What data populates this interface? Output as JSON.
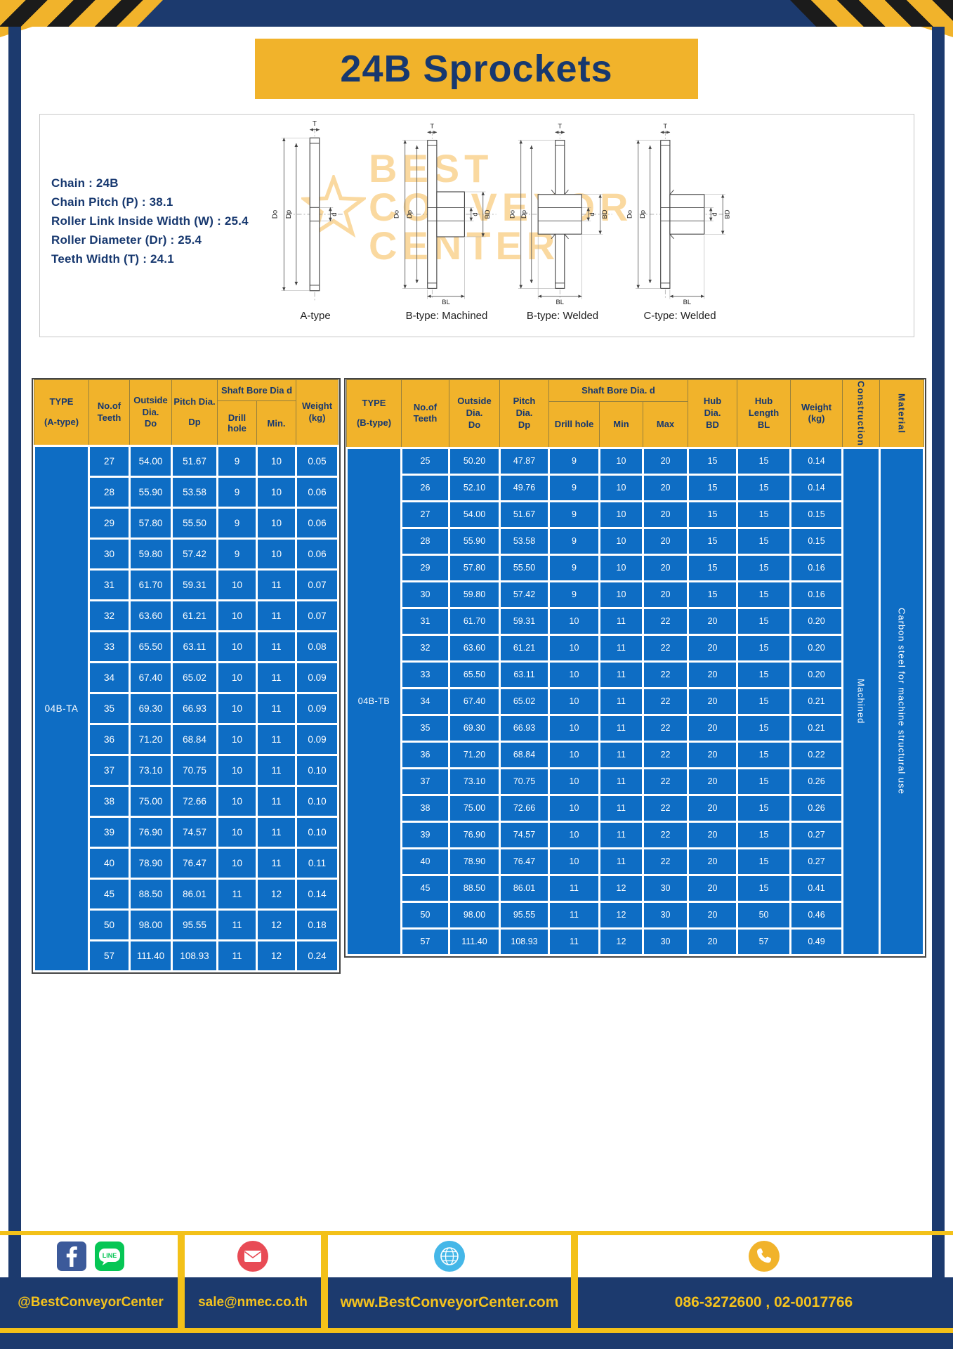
{
  "page": {
    "title": "24B Sprockets"
  },
  "specs": {
    "lines": [
      "Chain : 24B",
      "Chain Pitch (P) : 38.1",
      "Roller Link Inside Width (W) : 25.4",
      "Roller Diameter (Dr) : 25.4",
      "Teeth Width (T) : 24.1"
    ]
  },
  "diagram": {
    "types": [
      "A-type",
      "B-type: Machined",
      "B-type: Welded",
      "C-type: Welded"
    ],
    "dims": {
      "T": "T",
      "Do": "Do",
      "Dp": "Dp",
      "d": "d",
      "BD": "BD",
      "BL": "BL"
    },
    "watermark": [
      "BEST",
      "CONVEYOR",
      "CENTER"
    ]
  },
  "table_a": {
    "type_label": "04B-TA",
    "h": {
      "type": [
        "TYPE",
        "(A-type)"
      ],
      "teeth": [
        "No.of",
        "Teeth"
      ],
      "outside": [
        "Outside",
        "Dia.",
        "Do"
      ],
      "pitch": [
        "Pitch Dia.",
        "Dp"
      ],
      "bore_group": "Shaft Bore Dia d",
      "drill": "Drill hole",
      "min": "Min.",
      "weight": [
        "Weight",
        "(kg)"
      ]
    },
    "rows": [
      [
        "27",
        "54.00",
        "51.67",
        "9",
        "10",
        "0.05"
      ],
      [
        "28",
        "55.90",
        "53.58",
        "9",
        "10",
        "0.06"
      ],
      [
        "29",
        "57.80",
        "55.50",
        "9",
        "10",
        "0.06"
      ],
      [
        "30",
        "59.80",
        "57.42",
        "9",
        "10",
        "0.06"
      ],
      [
        "31",
        "61.70",
        "59.31",
        "10",
        "11",
        "0.07"
      ],
      [
        "32",
        "63.60",
        "61.21",
        "10",
        "11",
        "0.07"
      ],
      [
        "33",
        "65.50",
        "63.11",
        "10",
        "11",
        "0.08"
      ],
      [
        "34",
        "67.40",
        "65.02",
        "10",
        "11",
        "0.09"
      ],
      [
        "35",
        "69.30",
        "66.93",
        "10",
        "11",
        "0.09"
      ],
      [
        "36",
        "71.20",
        "68.84",
        "10",
        "11",
        "0.09"
      ],
      [
        "37",
        "73.10",
        "70.75",
        "10",
        "11",
        "0.10"
      ],
      [
        "38",
        "75.00",
        "72.66",
        "10",
        "11",
        "0.10"
      ],
      [
        "39",
        "76.90",
        "74.57",
        "10",
        "11",
        "0.10"
      ],
      [
        "40",
        "78.90",
        "76.47",
        "10",
        "11",
        "0.11"
      ],
      [
        "45",
        "88.50",
        "86.01",
        "11",
        "12",
        "0.14"
      ],
      [
        "50",
        "98.00",
        "95.55",
        "11",
        "12",
        "0.18"
      ],
      [
        "57",
        "111.40",
        "108.93",
        "11",
        "12",
        "0.24"
      ]
    ]
  },
  "table_b": {
    "type_label": "04B-TB",
    "construction_value": "Machined",
    "material_value": "Carbon steel for machine structural use",
    "h": {
      "type": [
        "TYPE",
        "(B-type)"
      ],
      "teeth": [
        "No.of",
        "Teeth"
      ],
      "outside": [
        "Outside",
        "Dia.",
        "Do"
      ],
      "pitch": [
        "Pitch",
        "Dia.",
        "Dp"
      ],
      "bore_group": "Shaft Bore Dia. d",
      "drill": "Drill hole",
      "min": "Min",
      "max": "Max",
      "hub_dia": [
        "Hub",
        "Dia.",
        "BD"
      ],
      "hub_len": [
        "Hub",
        "Length",
        "BL"
      ],
      "weight": [
        "Weight",
        "(kg)"
      ],
      "construction": "Construction",
      "material": "Material"
    },
    "rows": [
      [
        "25",
        "50.20",
        "47.87",
        "9",
        "10",
        "20",
        "15",
        "15",
        "0.14"
      ],
      [
        "26",
        "52.10",
        "49.76",
        "9",
        "10",
        "20",
        "15",
        "15",
        "0.14"
      ],
      [
        "27",
        "54.00",
        "51.67",
        "9",
        "10",
        "20",
        "15",
        "15",
        "0.15"
      ],
      [
        "28",
        "55.90",
        "53.58",
        "9",
        "10",
        "20",
        "15",
        "15",
        "0.15"
      ],
      [
        "29",
        "57.80",
        "55.50",
        "9",
        "10",
        "20",
        "15",
        "15",
        "0.16"
      ],
      [
        "30",
        "59.80",
        "57.42",
        "9",
        "10",
        "20",
        "15",
        "15",
        "0.16"
      ],
      [
        "31",
        "61.70",
        "59.31",
        "10",
        "11",
        "22",
        "20",
        "15",
        "0.20"
      ],
      [
        "32",
        "63.60",
        "61.21",
        "10",
        "11",
        "22",
        "20",
        "15",
        "0.20"
      ],
      [
        "33",
        "65.50",
        "63.11",
        "10",
        "11",
        "22",
        "20",
        "15",
        "0.20"
      ],
      [
        "34",
        "67.40",
        "65.02",
        "10",
        "11",
        "22",
        "20",
        "15",
        "0.21"
      ],
      [
        "35",
        "69.30",
        "66.93",
        "10",
        "11",
        "22",
        "20",
        "15",
        "0.21"
      ],
      [
        "36",
        "71.20",
        "68.84",
        "10",
        "11",
        "22",
        "20",
        "15",
        "0.22"
      ],
      [
        "37",
        "73.10",
        "70.75",
        "10",
        "11",
        "22",
        "20",
        "15",
        "0.26"
      ],
      [
        "38",
        "75.00",
        "72.66",
        "10",
        "11",
        "22",
        "20",
        "15",
        "0.26"
      ],
      [
        "39",
        "76.90",
        "74.57",
        "10",
        "11",
        "22",
        "20",
        "15",
        "0.27"
      ],
      [
        "40",
        "78.90",
        "76.47",
        "10",
        "11",
        "22",
        "20",
        "15",
        "0.27"
      ],
      [
        "45",
        "88.50",
        "86.01",
        "11",
        "12",
        "30",
        "20",
        "15",
        "0.41"
      ],
      [
        "50",
        "98.00",
        "95.55",
        "11",
        "12",
        "30",
        "20",
        "50",
        "0.46"
      ],
      [
        "57",
        "111.40",
        "108.93",
        "11",
        "12",
        "30",
        "20",
        "57",
        "0.49"
      ]
    ]
  },
  "footer": {
    "facebook_handle": "@BestConveyorCenter",
    "email": "sale@nmec.co.th",
    "website": "www.BestConveyorCenter.com",
    "phone": "086-3272600 , 02-0017766",
    "line_label": "LINE"
  },
  "colors": {
    "navy": "#1c3a6e",
    "yellow": "#f1b32b",
    "table_blue": "#0e6dc4",
    "footer_text": "#f5c21d"
  }
}
